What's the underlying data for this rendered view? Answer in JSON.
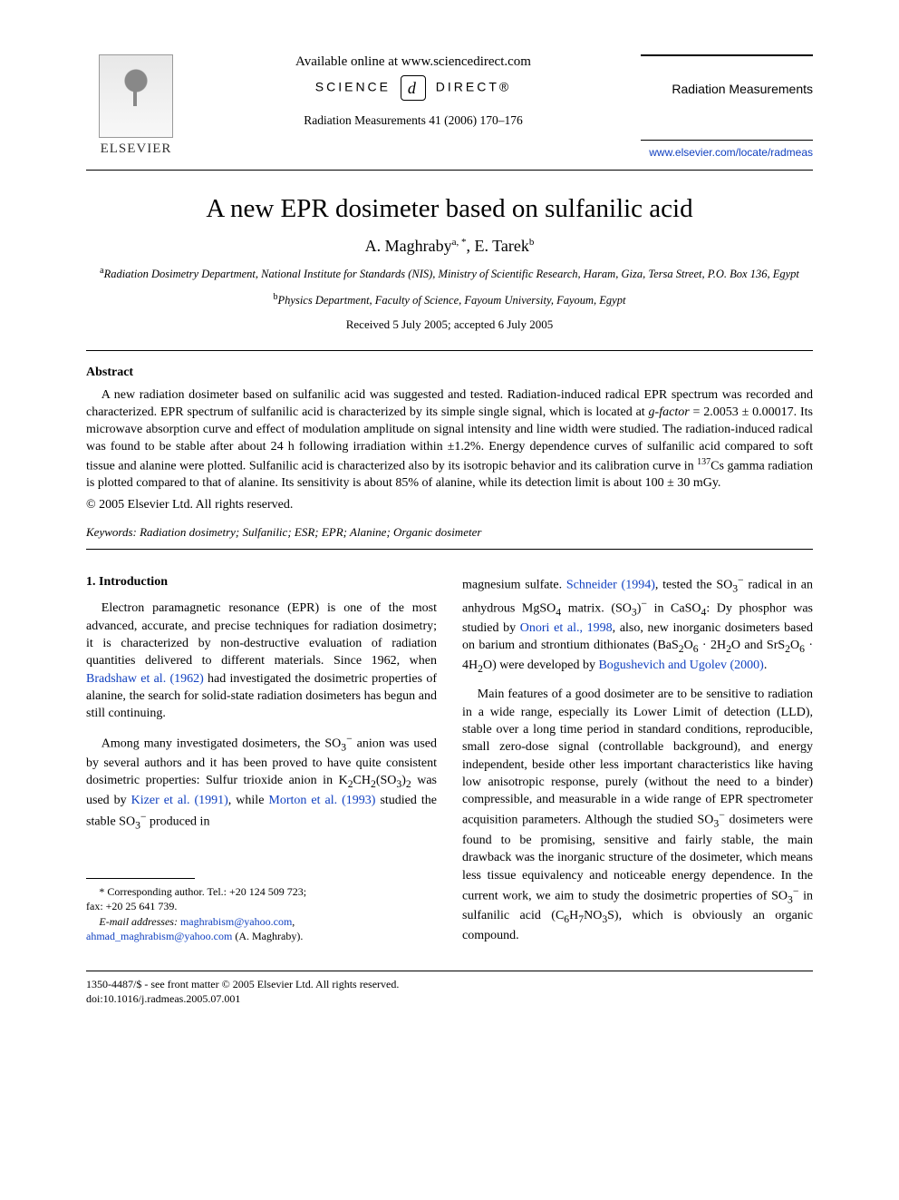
{
  "colors": {
    "text": "#000000",
    "background": "#ffffff",
    "link": "#1040c0",
    "rule": "#000000"
  },
  "typography": {
    "body_family": "Times New Roman",
    "body_size_pt": 10.5,
    "title_size_pt": 22,
    "authors_size_pt": 14,
    "affil_size_pt": 9.5,
    "abstract_size_pt": 10.5,
    "footnote_size_pt": 9
  },
  "header": {
    "publisher_logo_label": "ELSEVIER",
    "available_line": "Available online at www.sciencedirect.com",
    "sd_logo_left": "SCIENCE",
    "sd_logo_badge": "d",
    "sd_logo_right": "DIRECT®",
    "citation_line": "Radiation Measurements 41 (2006) 170–176",
    "journal_name": "Radiation Measurements",
    "journal_url": "www.elsevier.com/locate/radmeas"
  },
  "article": {
    "title": "A new EPR dosimeter based on sulfanilic acid",
    "authors_html": "A. Maghraby<sup>a, *</sup>, E. Tarek<sup>b</sup>",
    "affiliations": [
      {
        "sup": "a",
        "text": "Radiation Dosimetry Department, National Institute for Standards (NIS), Ministry of Scientific Research, Haram, Giza, Tersa Street, P.O. Box 136, Egypt"
      },
      {
        "sup": "b",
        "text": "Physics Department, Faculty of Science, Fayoum University, Fayoum, Egypt"
      }
    ],
    "dates": "Received 5 July 2005; accepted 6 July 2005"
  },
  "abstract": {
    "heading": "Abstract",
    "body_html": "A new radiation dosimeter based on sulfanilic acid was suggested and tested. Radiation-induced radical EPR spectrum was recorded and characterized. EPR spectrum of sulfanilic acid is characterized by its simple single signal, which is located at <i>g-factor</i> = 2.0053 ± 0.00017. Its microwave absorption curve and effect of modulation amplitude on signal intensity and line width were studied. The radiation-induced radical was found to be stable after about 24 h following irradiation within ±1.2%. Energy dependence curves of sulfanilic acid compared to soft tissue and alanine were plotted. Sulfanilic acid is characterized also by its isotropic behavior and its calibration curve in <sup>137</sup>Cs gamma radiation is plotted compared to that of alanine. Its sensitivity is about 85% of alanine, while its detection limit is about 100 ± 30 mGy.",
    "copyright": "© 2005 Elsevier Ltd. All rights reserved."
  },
  "keywords": {
    "label": "Keywords:",
    "list": "Radiation dosimetry; Sulfanilic; ESR; EPR; Alanine; Organic dosimeter"
  },
  "section1": {
    "heading": "1. Introduction",
    "left_paras": [
      "Electron paramagnetic resonance (EPR) is one of the most advanced, accurate, and precise techniques for radiation dosimetry; it is characterized by non-destructive evaluation of radiation quantities delivered to different materials. Since 1962, when <span class=\"cite\">Bradshaw et al. (1962)</span> had investigated the dosimetric properties of alanine, the search for solid-state radiation dosimeters has begun and still continuing.",
      "Among many investigated dosimeters, the SO<sub>3</sub><sup>−</sup> anion was used by several authors and it has been proved to have quite consistent dosimetric properties: Sulfur trioxide anion in K<sub>2</sub>CH<sub>2</sub>(SO<sub>3</sub>)<sub>2</sub> was used by <span class=\"cite\">Kizer et al. (1991)</span>, while <span class=\"cite\">Morton et al. (1993)</span> studied the stable SO<sub>3</sub><sup>−</sup> produced in"
    ],
    "right_paras": [
      "magnesium sulfate. <span class=\"cite\">Schneider (1994)</span>, tested the SO<sub>3</sub><sup>−</sup> radical in an anhydrous MgSO<sub>4</sub> matrix. (SO<sub>3</sub>)<sup>−</sup> in CaSO<sub>4</sub>: Dy phosphor was studied by <span class=\"cite\">Onori et al., 1998</span>, also, new inorganic dosimeters based on barium and strontium dithionates (BaS<sub>2</sub>O<sub>6</sub> · 2H<sub>2</sub>O and SrS<sub>2</sub>O<sub>6</sub> · 4H<sub>2</sub>O) were developed by <span class=\"cite\">Bogushevich and Ugolev (2000)</span>.",
      "Main features of a good dosimeter are to be sensitive to radiation in a wide range, especially its Lower Limit of detection (LLD), stable over a long time period in standard conditions, reproducible, small zero-dose signal (controllable background), and energy independent, beside other less important characteristics like having low anisotropic response, purely (without the need to a binder) compressible, and measurable in a wide range of EPR spectrometer acquisition parameters. Although the studied SO<sub>3</sub><sup>−</sup> dosimeters were found to be promising, sensitive and fairly stable, the main drawback was the inorganic structure of the dosimeter, which means less tissue equivalency and noticeable energy dependence. In the current work, we aim to study the dosimetric properties of SO<sub>3</sub><sup>−</sup> in sulfanilic acid (C<sub>6</sub>H<sub>7</sub>NO<sub>3</sub>S), which is obviously an organic compound."
    ]
  },
  "footnote": {
    "corr_label": "* Corresponding author. Tel.: +20 124 509 723;",
    "fax": "fax: +20 25 641 739.",
    "email_label": "E-mail addresses:",
    "emails": [
      "maghrabism@yahoo.com",
      "ahmad_maghrabism@yahoo.com"
    ],
    "email_owner": "(A. Maghraby)."
  },
  "bottom": {
    "line1": "1350-4487/$ - see front matter © 2005 Elsevier Ltd. All rights reserved.",
    "line2": "doi:10.1016/j.radmeas.2005.07.001"
  }
}
